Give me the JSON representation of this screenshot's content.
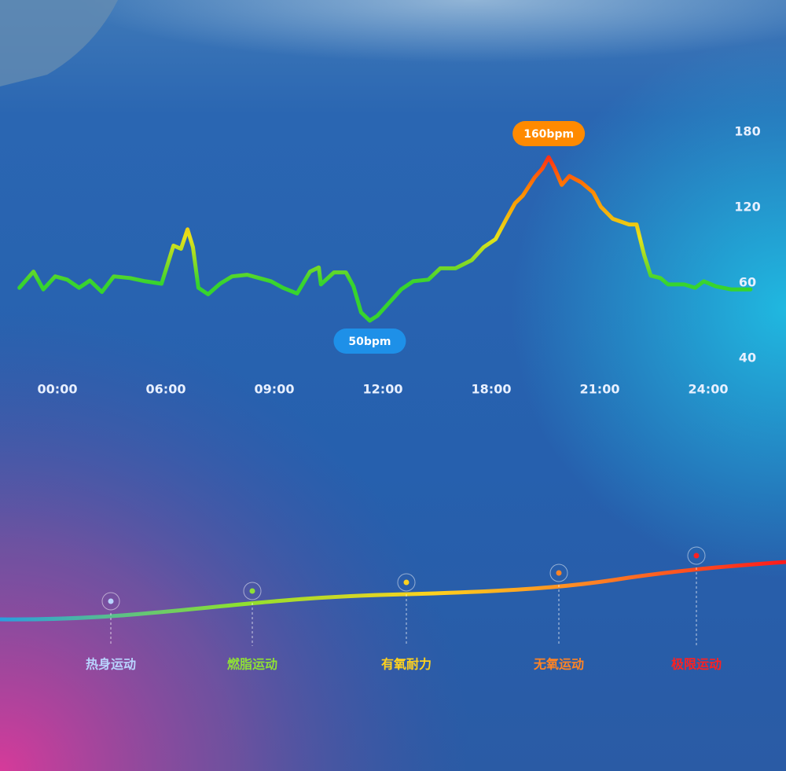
{
  "chart_data": {
    "type": "line",
    "x": [
      -0.35,
      -0.22,
      -0.13,
      -0.02,
      0.09,
      0.2,
      0.3,
      0.41,
      0.52,
      0.67,
      0.81,
      0.96,
      1.07,
      1.14,
      1.2,
      1.25,
      1.3,
      1.39,
      1.5,
      1.61,
      1.75,
      1.86,
      1.97,
      2.08,
      2.21,
      2.33,
      2.41,
      2.43,
      2.55,
      2.66,
      2.73,
      2.8,
      2.88,
      2.95,
      3.06,
      3.17,
      3.28,
      3.42,
      3.53,
      3.67,
      3.82,
      3.93,
      4.04,
      4.14,
      4.22,
      4.29,
      4.4,
      4.47,
      4.53,
      4.58,
      4.65,
      4.72,
      4.83,
      4.94,
      5.01,
      5.12,
      5.27,
      5.34,
      5.41,
      5.47,
      5.56,
      5.63,
      5.78,
      5.88,
      5.96,
      6.07,
      6.21,
      6.39
    ],
    "values": [
      58.7,
      69.0,
      58.3,
      65.2,
      62.6,
      58.7,
      61.9,
      57.6,
      65.2,
      63.9,
      61.3,
      59.8,
      89.7,
      87.1,
      102.6,
      88.4,
      58.7,
      57.0,
      59.8,
      65.2,
      66.5,
      63.9,
      61.3,
      58.7,
      57.2,
      69.0,
      72.3,
      59.6,
      68.4,
      68.4,
      59.1,
      52.2,
      50,
      51.3,
      54.8,
      58.3,
      61.3,
      62.6,
      71.6,
      71.6,
      78.1,
      88.4,
      94.8,
      111.0,
      123.5,
      129.3,
      143.9,
      150.9,
      160,
      152,
      138,
      145,
      140,
      132,
      120.6,
      111,
      106.5,
      106.5,
      82,
      65.8,
      63.9,
      59.6,
      59.6,
      58.7,
      61.3,
      59.1,
      58.3,
      58.3
    ],
    "value_labels": [
      null,
      null,
      null,
      null,
      null,
      null,
      null,
      null,
      null,
      null,
      null,
      null,
      null,
      null,
      null,
      null,
      null,
      null,
      null,
      null,
      null,
      null,
      null,
      null,
      null,
      null,
      null,
      null,
      null,
      null,
      null,
      null,
      "50bpm",
      null,
      null,
      null,
      null,
      null,
      null,
      null,
      null,
      null,
      null,
      null,
      null,
      null,
      null,
      null,
      "160bpm",
      null,
      null,
      null,
      null,
      null,
      null,
      null,
      null,
      null,
      null,
      null,
      null,
      null,
      null,
      null,
      null,
      null,
      null,
      null
    ],
    "line_colors": [
      "#ff1a1a",
      "#ff8c00",
      "#e6e21a",
      "#37d42e"
    ],
    "xlim": [
      -0.38,
      6.43
    ],
    "xticks": [
      {
        "value": 0,
        "label": "00:00"
      },
      {
        "value": 1,
        "label": "06:00"
      },
      {
        "value": 2,
        "label": "09:00"
      },
      {
        "value": 3,
        "label": "12:00"
      },
      {
        "value": 4,
        "label": "18:00"
      },
      {
        "value": 5,
        "label": "21:00"
      },
      {
        "value": 6,
        "label": "24:00"
      }
    ],
    "yticks": [
      180,
      120,
      60,
      40
    ]
  },
  "zones": [
    {
      "label": "热身运动",
      "color": "#b9d4ff"
    },
    {
      "label": "燃脂运动",
      "color": "#8fe035"
    },
    {
      "label": "有氧耐力",
      "color": "#ffd21e"
    },
    {
      "label": "无氧运动",
      "color": "#ff8424"
    },
    {
      "label": "极限运动",
      "color": "#ff2020"
    }
  ]
}
